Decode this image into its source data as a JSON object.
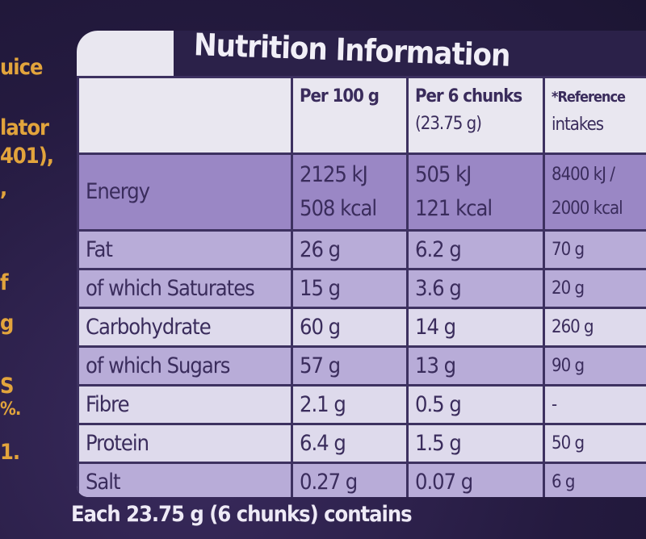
{
  "left_fragments": [
    "uice",
    "lator",
    "401),",
    ",",
    "f",
    "g",
    "S",
    "%.",
    "1."
  ],
  "title": "Nutrition Information",
  "headers": [
    "",
    "Per 100 g",
    "Per 6 chunks",
    "(23.75 g)",
    "*Reference",
    "intakes"
  ],
  "energy": {
    "label": "Energy",
    "per100_kj": "2125 kJ",
    "per100_kcal": "508 kcal",
    "per6_kj": "505 kJ",
    "per6_kcal": "121 kcal",
    "ri_kj": "8400 kJ /",
    "ri_kcal": "2000 kcal"
  },
  "rows": [
    {
      "label": "Fat",
      "per100": "26 g",
      "per6": "6.2 g",
      "ri": "70 g"
    },
    {
      "label": "of which Saturates",
      "per100": "15 g",
      "per6": "3.6 g",
      "ri": "20 g"
    },
    {
      "label": "Carbohydrate",
      "per100": "60 g",
      "per6": "14 g",
      "ri": "260 g"
    },
    {
      "label": "of which Sugars",
      "per100": "57 g",
      "per6": "13 g",
      "ri": "90 g"
    },
    {
      "label": "Fibre",
      "per100": "2.1 g",
      "per6": "0.5 g",
      "ri": "-"
    },
    {
      "label": "Protein",
      "per100": "6.4 g",
      "per6": "1.5 g",
      "ri": "50 g"
    },
    {
      "label": "Salt",
      "per100": "0.27 g",
      "per6": "0.07 g",
      "ri": "6 g"
    }
  ],
  "footer": "Each 23.75 g (6 chunks) contains",
  "colors": {
    "background": "#261c42",
    "header": "#e9e7f0",
    "energy": "#9a87c5",
    "lavender": "#b8acd8",
    "light": "#dedaec",
    "text": "#3a2c5c",
    "side_text": "#e2a43c"
  }
}
